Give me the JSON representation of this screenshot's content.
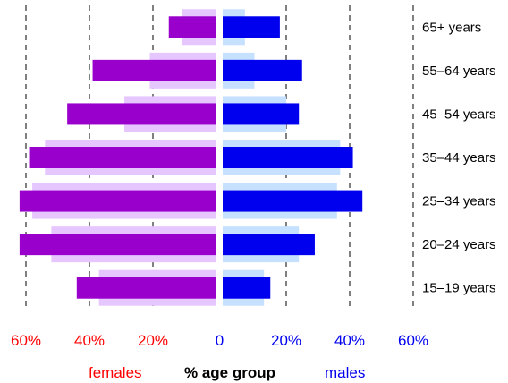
{
  "chart_data": {
    "type": "bar",
    "orientation": "horizontal-population-pyramid",
    "categories": [
      "65+ years",
      "55–64 years",
      "45–54 years",
      "35–44 years",
      "25–34 years",
      "20–24 years",
      "15–19 years"
    ],
    "series": [
      {
        "name": "females",
        "side": "left",
        "values": [
          15,
          39,
          47,
          59,
          62,
          62,
          44
        ],
        "color": "#9900cc"
      },
      {
        "name": "females (background)",
        "side": "left",
        "values": [
          11,
          21,
          29,
          54,
          58,
          52,
          37
        ],
        "color": "#e6c6ff"
      },
      {
        "name": "males",
        "side": "right",
        "values": [
          18,
          25,
          24,
          41,
          44,
          29,
          15
        ],
        "color": "#0000ee"
      },
      {
        "name": "males (background)",
        "side": "right",
        "values": [
          7,
          10,
          20,
          37,
          36,
          24,
          13
        ],
        "color": "#c6e0ff"
      }
    ],
    "x_ticks_left": [
      "60%",
      "40%",
      "20%",
      "0"
    ],
    "x_ticks_right": [
      "20%",
      "40%",
      "60%"
    ],
    "xlim_percent": [
      0,
      60
    ],
    "grid": "dashed vertical at 20% intervals",
    "legend": {
      "females": "females",
      "axis_title": "% age group",
      "males": "males"
    },
    "colors": {
      "females_label": "#ff0000",
      "males_label": "#0000ee",
      "grid": "#000000"
    }
  }
}
